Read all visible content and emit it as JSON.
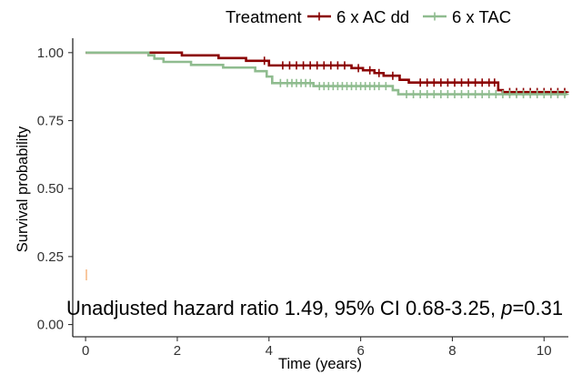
{
  "chart_data": {
    "type": "line",
    "line_style": "step",
    "legend": {
      "title": "Treatment",
      "position": "top"
    },
    "xlabel": "Time (years)",
    "ylabel": "Survival probability",
    "xlim": [
      -0.28,
      10.53
    ],
    "ylim": [
      -0.045,
      1.053
    ],
    "xticks": [
      0,
      2,
      4,
      6,
      8,
      10
    ],
    "xtick_labels": [
      "0",
      "2",
      "4",
      "6",
      "8",
      "10"
    ],
    "yticks": [
      0,
      0.25,
      0.5,
      0.75,
      1
    ],
    "ytick_labels": [
      "0.00",
      "0.25",
      "0.50",
      "0.75",
      "1.00"
    ],
    "grid": false,
    "series": [
      {
        "name": "6 x AC dd",
        "color": "#8b0000",
        "x": [
          0,
          2.1,
          2.9,
          3.5,
          4.0,
          5.8,
          6.05,
          6.3,
          6.5,
          6.85,
          7.05,
          9.0,
          9.1,
          10.5
        ],
        "y": [
          1.0,
          0.99,
          0.98,
          0.97,
          0.953,
          0.943,
          0.935,
          0.925,
          0.915,
          0.9,
          0.89,
          0.862,
          0.855,
          0.855
        ],
        "censor_x": [
          3.9,
          4.3,
          4.45,
          4.6,
          4.75,
          4.9,
          5.05,
          5.2,
          5.35,
          5.5,
          5.65,
          5.95,
          6.2,
          6.4,
          6.7,
          7.3,
          7.45,
          7.6,
          7.75,
          7.9,
          8.05,
          8.2,
          8.35,
          8.5,
          8.65,
          8.8,
          8.92,
          9.25,
          9.4,
          9.55,
          9.7,
          9.85,
          10.0,
          10.15,
          10.3,
          10.45
        ]
      },
      {
        "name": "6 x TAC",
        "color": "#8fbc8f",
        "x": [
          0,
          1.37,
          1.5,
          1.7,
          2.3,
          3.0,
          3.7,
          3.95,
          4.07,
          4.97,
          6.7,
          6.82,
          10.5
        ],
        "y": [
          1.0,
          0.99,
          0.978,
          0.966,
          0.955,
          0.945,
          0.932,
          0.912,
          0.888,
          0.877,
          0.862,
          0.847,
          0.847
        ],
        "censor_x": [
          4.25,
          4.4,
          4.5,
          4.6,
          4.7,
          4.8,
          4.9,
          5.1,
          5.2,
          5.3,
          5.4,
          5.5,
          5.6,
          5.7,
          5.8,
          5.9,
          6.0,
          6.1,
          6.2,
          6.3,
          6.4,
          6.55,
          7.0,
          7.15,
          7.3,
          7.45,
          7.6,
          7.75,
          7.9,
          8.05,
          8.2,
          8.35,
          8.5,
          8.65,
          8.8,
          8.95,
          9.1,
          9.25,
          9.4,
          9.55,
          9.7,
          9.85,
          10.0,
          10.15,
          10.3,
          10.45
        ]
      }
    ],
    "annotation": {
      "text": "Unadjusted hazard ratio 1.49, 95% CI 0.68-3.25, ",
      "p_symbol": "p",
      "p_value": "=0.31"
    }
  }
}
